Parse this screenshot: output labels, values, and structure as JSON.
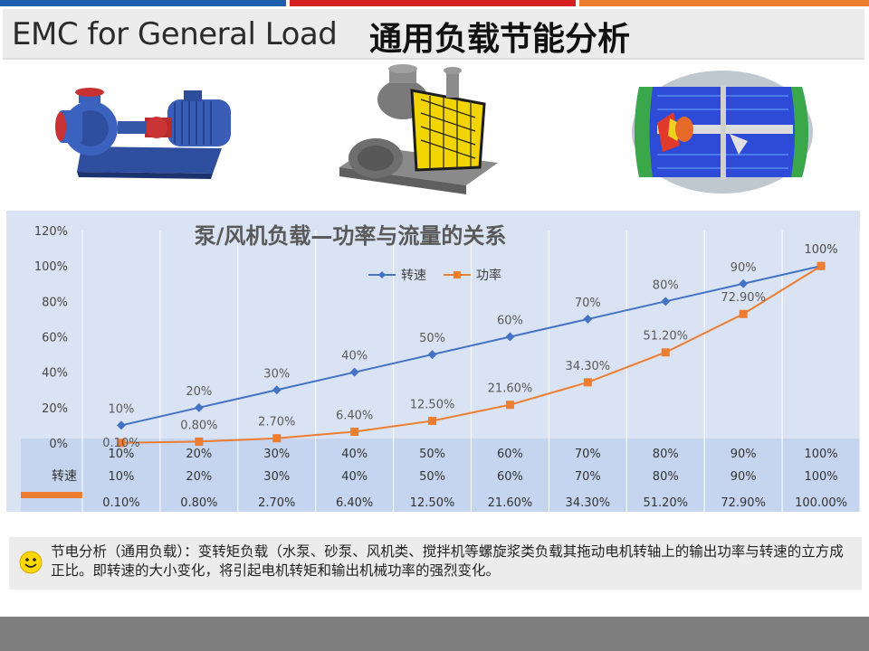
{
  "header": {
    "title_en": "EMC for General Load",
    "title_cn": "通用负载节能分析"
  },
  "images": {
    "pump": "centrifugal-pump-image",
    "blower": "roots-blower-image",
    "simulation": "fluid-simulation-image"
  },
  "chart_data": {
    "type": "line",
    "title": "泵/风机负载—功率与流量的关系",
    "categories": [
      "10%",
      "20%",
      "30%",
      "40%",
      "50%",
      "60%",
      "70%",
      "80%",
      "90%",
      "100%"
    ],
    "y_ticks": [
      "120%",
      "100%",
      "80%",
      "60%",
      "40%",
      "20%",
      "0%"
    ],
    "ylim": [
      0,
      120
    ],
    "grid": "vertical",
    "legend_position": "top-center",
    "series": [
      {
        "name": "转速",
        "values": [
          10,
          20,
          30,
          40,
          50,
          60,
          70,
          80,
          90,
          100
        ],
        "labels": [
          "10%",
          "20%",
          "30%",
          "40%",
          "50%",
          "60%",
          "70%",
          "80%",
          "90%",
          "100%"
        ],
        "table_row": [
          "10%",
          "20%",
          "30%",
          "40%",
          "50%",
          "60%",
          "70%",
          "80%",
          "90%",
          "100%"
        ],
        "color": "#4472c4",
        "marker": "diamond"
      },
      {
        "name": "功率",
        "values": [
          0.1,
          0.8,
          2.7,
          6.4,
          12.5,
          21.6,
          34.3,
          51.2,
          72.9,
          100
        ],
        "labels": [
          "0.10%",
          "0.80%",
          "2.70%",
          "6.40%",
          "12.50%",
          "21.60%",
          "34.30%",
          "51.20%",
          "72.90%",
          "100%"
        ],
        "table_row": [
          "0.10%",
          "0.80%",
          "2.70%",
          "6.40%",
          "12.50%",
          "21.60%",
          "34.30%",
          "51.20%",
          "72.90%",
          "100.00%"
        ],
        "color": "#ed7d31",
        "marker": "square"
      }
    ],
    "table_header_row": [
      "10%",
      "20%",
      "30%",
      "40%",
      "50%",
      "60%",
      "70%",
      "80%",
      "90%",
      "100%"
    ],
    "table_row_label": "转速"
  },
  "note": {
    "icon": "smiley-icon",
    "text": "节电分析（通用负载）：变转矩负载（水泵、砂泵、风机类、搅拌机等螺旋浆类负载其拖动电机转轴上的输出功率与转速的立方成正比。即转速的大小变化，将引起电机转矩和输出机械功率的强烈变化。"
  }
}
